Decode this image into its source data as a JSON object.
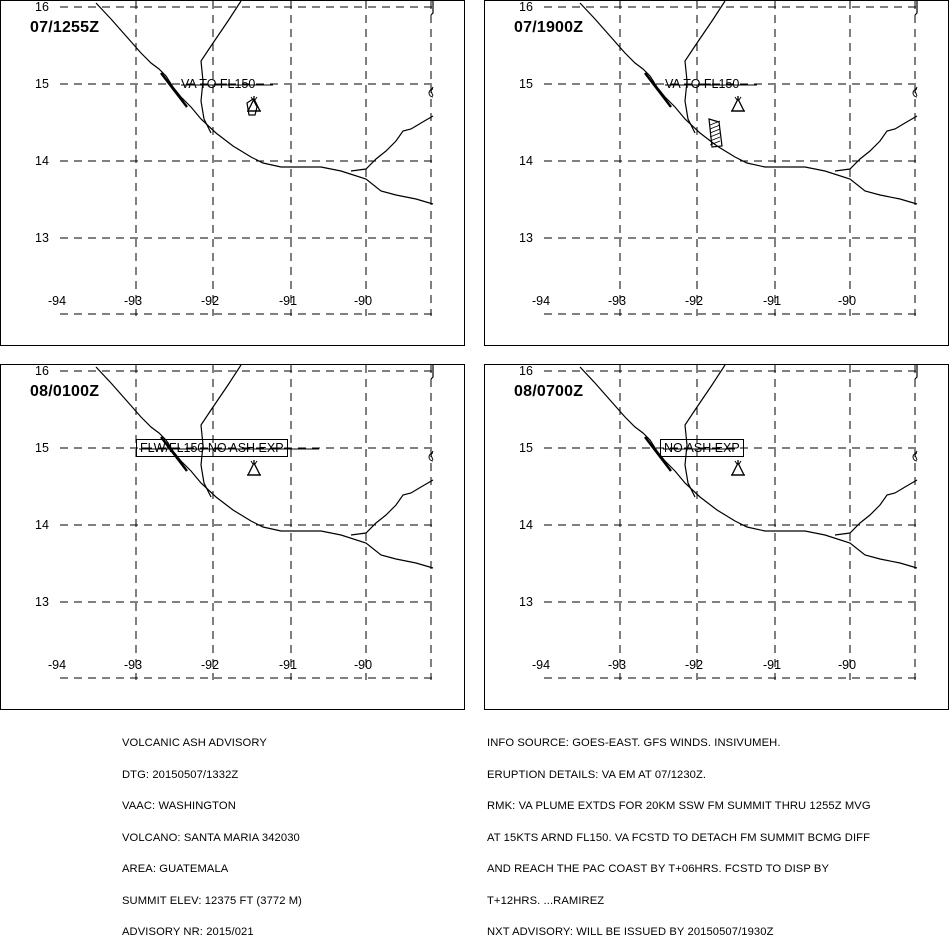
{
  "panels": [
    {
      "time": "07/1255Z",
      "label": "VA TO FL150",
      "label_boxed": false,
      "has_polygon": true,
      "plume": "small"
    },
    {
      "time": "07/1900Z",
      "label": "VA TO FL150",
      "label_boxed": false,
      "has_polygon": true,
      "plume": "box"
    },
    {
      "time": "08/0100Z",
      "label": "FLW/FL150 NO ASH EXP",
      "label_boxed": true,
      "has_polygon": false
    },
    {
      "time": "08/0700Z",
      "label": "NO ASH EXP",
      "label_boxed": true,
      "has_polygon": false
    }
  ],
  "map": {
    "lat_ticks": [
      "16",
      "15",
      "14",
      "13"
    ],
    "lon_ticks": [
      "-94",
      "-93",
      "-92",
      "-91",
      "-90"
    ],
    "volcano_icon": "volcano-symbol-icon",
    "line_color": "#000000"
  },
  "footer_left": [
    "VOLCANIC ASH ADVISORY",
    "DTG: 20150507/1332Z",
    "VAAC: WASHINGTON",
    "VOLCANO: SANTA MARIA 342030",
    "AREA: GUATEMALA",
    "SUMMIT ELEV: 12375 FT (3772 M)",
    "ADVISORY NR: 2015/021"
  ],
  "footer_right": [
    "INFO SOURCE: GOES-EAST. GFS WINDS. INSIVUMEH.",
    "ERUPTION DETAILS: VA EM AT 07/1230Z.",
    "RMK: VA PLUME EXTDS FOR 20KM SSW FM SUMMIT THRU 1255Z MVG",
    "AT 15KTS ARND FL150. VA FCSTD TO DETACH FM SUMMIT BCMG DIFF",
    "AND REACH THE PAC COAST BY T+06HRS. FCSTD TO DISP BY",
    "T+12HRS. ...RAMIREZ",
    "NXT ADVISORY: WILL BE ISSUED BY 20150507/1930Z"
  ]
}
